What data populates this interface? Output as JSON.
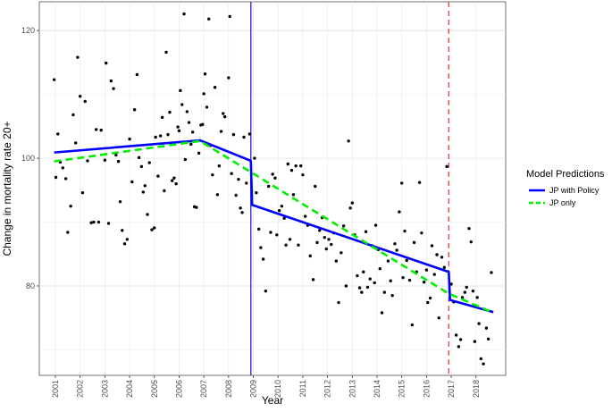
{
  "chart_data": {
    "type": "scatter",
    "title": "",
    "xlabel": "Year",
    "ylabel": "Change in mortality rate 20+",
    "x_tick_labels": [
      "2001",
      "2002",
      "2003",
      "2004",
      "2005",
      "2006",
      "2007",
      "2008",
      "2009",
      "2010",
      "2011",
      "2012",
      "2013",
      "2014",
      "2015",
      "2016",
      "2017",
      "2018"
    ],
    "y_tick_labels": [
      "80",
      "100",
      "120"
    ],
    "x_range": [
      2000.35,
      2019.2
    ],
    "y_range": [
      66,
      124.5
    ],
    "grid": true,
    "legend_placement": "right",
    "legend_title": "Model Predictions",
    "reference_lines": [
      {
        "x": 2008.9,
        "color": "#3333cc",
        "style": "solid"
      },
      {
        "x": 2016.9,
        "color": "#e05050",
        "style": "dashed"
      }
    ],
    "series": [
      {
        "name": "JP with Policy",
        "color": "#0000ff",
        "style": "solid",
        "segments": [
          [
            [
              2000.95,
              100.9
            ],
            [
              2006.85,
              102.8
            ],
            [
              2008.9,
              99.6
            ],
            [
              2008.95,
              92.7
            ],
            [
              2016.9,
              82.2
            ],
            [
              2016.95,
              77.8
            ],
            [
              2018.7,
              75.9
            ]
          ]
        ]
      },
      {
        "name": "JP only",
        "color": "#00ee00",
        "style": "dashed",
        "segments": [
          [
            [
              2000.95,
              99.5
            ],
            [
              2006.85,
              102.7
            ],
            [
              2016.9,
              78.8
            ],
            [
              2018.7,
              75.8
            ]
          ]
        ]
      }
    ],
    "points": [
      [
        2000.95,
        112.3
      ],
      [
        2001.02,
        97.0
      ],
      [
        2001.1,
        103.8
      ],
      [
        2001.2,
        99.4
      ],
      [
        2001.3,
        98.5
      ],
      [
        2001.42,
        96.8
      ],
      [
        2001.5,
        88.4
      ],
      [
        2001.62,
        92.5
      ],
      [
        2001.72,
        106.8
      ],
      [
        2001.82,
        102.4
      ],
      [
        2001.9,
        115.8
      ],
      [
        2002.0,
        109.7
      ],
      [
        2002.1,
        94.6
      ],
      [
        2002.2,
        108.9
      ],
      [
        2002.3,
        99.6
      ],
      [
        2002.45,
        89.9
      ],
      [
        2002.55,
        90.0
      ],
      [
        2002.65,
        104.5
      ],
      [
        2002.75,
        90.0
      ],
      [
        2002.85,
        104.4
      ],
      [
        2003.0,
        99.7
      ],
      [
        2003.05,
        114.9
      ],
      [
        2003.15,
        89.8
      ],
      [
        2003.25,
        112.1
      ],
      [
        2003.35,
        110.9
      ],
      [
        2003.45,
        100.5
      ],
      [
        2003.55,
        99.5
      ],
      [
        2003.62,
        93.2
      ],
      [
        2003.7,
        88.7
      ],
      [
        2003.8,
        86.6
      ],
      [
        2003.9,
        87.3
      ],
      [
        2004.0,
        103.0
      ],
      [
        2004.1,
        96.3
      ],
      [
        2004.2,
        107.6
      ],
      [
        2004.3,
        113.1
      ],
      [
        2004.38,
        100.1
      ],
      [
        2004.48,
        98.7
      ],
      [
        2004.55,
        94.7
      ],
      [
        2004.62,
        95.7
      ],
      [
        2004.72,
        91.2
      ],
      [
        2004.8,
        99.3
      ],
      [
        2004.9,
        88.8
      ],
      [
        2005.0,
        89.1
      ],
      [
        2005.05,
        103.3
      ],
      [
        2005.15,
        97.2
      ],
      [
        2005.25,
        103.5
      ],
      [
        2005.32,
        106.4
      ],
      [
        2005.4,
        94.9
      ],
      [
        2005.48,
        116.6
      ],
      [
        2005.55,
        103.7
      ],
      [
        2005.62,
        107.2
      ],
      [
        2005.72,
        96.5
      ],
      [
        2005.8,
        96.9
      ],
      [
        2005.88,
        96.0
      ],
      [
        2005.95,
        104.9
      ],
      [
        2006.0,
        104.3
      ],
      [
        2006.05,
        110.6
      ],
      [
        2006.12,
        108.4
      ],
      [
        2006.2,
        122.6
      ],
      [
        2006.25,
        99.8
      ],
      [
        2006.32,
        107.3
      ],
      [
        2006.4,
        105.6
      ],
      [
        2006.48,
        102.2
      ],
      [
        2006.55,
        104.1
      ],
      [
        2006.62,
        92.4
      ],
      [
        2006.7,
        92.3
      ],
      [
        2006.8,
        100.8
      ],
      [
        2006.88,
        105.2
      ],
      [
        2006.95,
        105.3
      ],
      [
        2007.0,
        110.1
      ],
      [
        2007.05,
        113.2
      ],
      [
        2007.12,
        108.0
      ],
      [
        2007.2,
        121.8
      ],
      [
        2007.28,
        102.0
      ],
      [
        2007.35,
        97.4
      ],
      [
        2007.45,
        111.1
      ],
      [
        2007.55,
        94.3
      ],
      [
        2007.62,
        98.8
      ],
      [
        2007.7,
        104.2
      ],
      [
        2007.78,
        107.0
      ],
      [
        2007.85,
        106.5
      ],
      [
        2008.0,
        112.6
      ],
      [
        2008.05,
        122.2
      ],
      [
        2008.12,
        97.6
      ],
      [
        2008.2,
        103.7
      ],
      [
        2008.3,
        94.2
      ],
      [
        2008.4,
        96.7
      ],
      [
        2008.48,
        92.2
      ],
      [
        2008.55,
        91.5
      ],
      [
        2008.62,
        103.3
      ],
      [
        2008.72,
        96.1
      ],
      [
        2008.85,
        103.8
      ],
      [
        2009.05,
        100.0
      ],
      [
        2009.12,
        94.6
      ],
      [
        2009.22,
        88.9
      ],
      [
        2009.3,
        86.0
      ],
      [
        2009.4,
        84.2
      ],
      [
        2009.5,
        79.2
      ],
      [
        2009.62,
        95.6
      ],
      [
        2009.7,
        88.4
      ],
      [
        2009.78,
        97.5
      ],
      [
        2009.88,
        96.9
      ],
      [
        2009.95,
        88.0
      ],
      [
        2010.05,
        91.8
      ],
      [
        2010.15,
        92.5
      ],
      [
        2010.25,
        90.6
      ],
      [
        2010.32,
        86.4
      ],
      [
        2010.4,
        99.1
      ],
      [
        2010.48,
        87.3
      ],
      [
        2010.55,
        98.1
      ],
      [
        2010.62,
        94.3
      ],
      [
        2010.72,
        98.8
      ],
      [
        2010.82,
        86.4
      ],
      [
        2010.92,
        98.8
      ],
      [
        2011.0,
        97.4
      ],
      [
        2011.1,
        90.9
      ],
      [
        2011.2,
        89.5
      ],
      [
        2011.3,
        84.7
      ],
      [
        2011.42,
        81.0
      ],
      [
        2011.5,
        95.6
      ],
      [
        2011.58,
        86.8
      ],
      [
        2011.68,
        88.7
      ],
      [
        2011.78,
        90.7
      ],
      [
        2011.88,
        87.6
      ],
      [
        2011.95,
        85.8
      ],
      [
        2012.05,
        87.3
      ],
      [
        2012.15,
        86.5
      ],
      [
        2012.25,
        88.3
      ],
      [
        2012.35,
        83.9
      ],
      [
        2012.45,
        77.4
      ],
      [
        2012.55,
        85.2
      ],
      [
        2012.65,
        89.4
      ],
      [
        2012.75,
        80.0
      ],
      [
        2012.85,
        102.7
      ],
      [
        2012.92,
        92.2
      ],
      [
        2013.0,
        93.0
      ],
      [
        2013.1,
        88.0
      ],
      [
        2013.2,
        81.6
      ],
      [
        2013.3,
        79.7
      ],
      [
        2013.38,
        79.0
      ],
      [
        2013.45,
        82.2
      ],
      [
        2013.55,
        88.5
      ],
      [
        2013.62,
        79.8
      ],
      [
        2013.72,
        81.1
      ],
      [
        2013.8,
        86.3
      ],
      [
        2013.9,
        80.5
      ],
      [
        2013.95,
        89.5
      ],
      [
        2014.05,
        85.7
      ],
      [
        2014.12,
        82.7
      ],
      [
        2014.2,
        75.8
      ],
      [
        2014.3,
        79.0
      ],
      [
        2014.45,
        83.9
      ],
      [
        2014.55,
        80.8
      ],
      [
        2014.62,
        78.5
      ],
      [
        2014.72,
        86.6
      ],
      [
        2014.8,
        85.6
      ],
      [
        2014.9,
        91.6
      ],
      [
        2015.0,
        96.1
      ],
      [
        2015.05,
        81.3
      ],
      [
        2015.12,
        88.6
      ],
      [
        2015.2,
        84.0
      ],
      [
        2015.32,
        80.9
      ],
      [
        2015.42,
        73.9
      ],
      [
        2015.5,
        86.8
      ],
      [
        2015.6,
        82.2
      ],
      [
        2015.72,
        96.2
      ],
      [
        2015.8,
        88.3
      ],
      [
        2015.9,
        80.6
      ],
      [
        2016.0,
        82.5
      ],
      [
        2016.05,
        77.4
      ],
      [
        2016.15,
        78.1
      ],
      [
        2016.22,
        86.3
      ],
      [
        2016.32,
        81.8
      ],
      [
        2016.42,
        84.9
      ],
      [
        2016.5,
        75.0
      ],
      [
        2016.62,
        84.5
      ],
      [
        2016.72,
        82.9
      ],
      [
        2016.82,
        98.7
      ],
      [
        2017.0,
        80.3
      ],
      [
        2017.1,
        77.5
      ],
      [
        2017.2,
        72.3
      ],
      [
        2017.3,
        70.5
      ],
      [
        2017.38,
        71.6
      ],
      [
        2017.45,
        78.2
      ],
      [
        2017.55,
        79.0
      ],
      [
        2017.62,
        79.8
      ],
      [
        2017.72,
        89.0
      ],
      [
        2017.8,
        86.9
      ],
      [
        2017.88,
        79.2
      ],
      [
        2017.95,
        71.3
      ],
      [
        2018.05,
        78.2
      ],
      [
        2018.12,
        74.1
      ],
      [
        2018.2,
        68.6
      ],
      [
        2018.3,
        67.8
      ],
      [
        2018.42,
        73.4
      ],
      [
        2018.5,
        71.7
      ],
      [
        2018.62,
        82.1
      ]
    ]
  }
}
